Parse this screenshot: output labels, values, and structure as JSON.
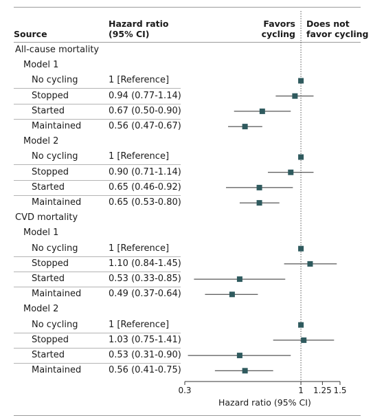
{
  "headers": {
    "source": "Source",
    "hr_line1": "Hazard ratio",
    "hr_line2": "(95% CI)",
    "left_line1": "Favors",
    "left_line2": "cycling",
    "right_line1": "Does not",
    "right_line2": "favor cycling"
  },
  "rows": [
    {
      "label": "All-cause mortality",
      "level": 0
    },
    {
      "label": "Model 1",
      "level": 1
    },
    {
      "label": "No cycling",
      "level": 2,
      "hr_text": "1 [Reference]"
    },
    {
      "label": "Stopped",
      "level": 2,
      "hr_text": "0.94 (0.77-1.14)"
    },
    {
      "label": "Started",
      "level": 2,
      "hr_text": "0.67 (0.50-0.90)"
    },
    {
      "label": "Maintained",
      "level": 2,
      "hr_text": "0.56 (0.47-0.67)"
    },
    {
      "label": "Model 2",
      "level": 1
    },
    {
      "label": "No cycling",
      "level": 2,
      "hr_text": "1 [Reference]"
    },
    {
      "label": "Stopped",
      "level": 2,
      "hr_text": "0.90 (0.71-1.14)"
    },
    {
      "label": "Started",
      "level": 2,
      "hr_text": "0.65 (0.46-0.92)"
    },
    {
      "label": "Maintained",
      "level": 2,
      "hr_text": "0.65 (0.53-0.80)"
    },
    {
      "label": "CVD mortality",
      "level": 0
    },
    {
      "label": "Model 1",
      "level": 1
    },
    {
      "label": "No cycling",
      "level": 2,
      "hr_text": "1 [Reference]"
    },
    {
      "label": "Stopped",
      "level": 2,
      "hr_text": "1.10 (0.84-1.45)"
    },
    {
      "label": "Started",
      "level": 2,
      "hr_text": "0.53 (0.33-0.85)"
    },
    {
      "label": "Maintained",
      "level": 2,
      "hr_text": "0.49 (0.37-0.64)"
    },
    {
      "label": "Model 2",
      "level": 1
    },
    {
      "label": "No cycling",
      "level": 2,
      "hr_text": "1 [Reference]"
    },
    {
      "label": "Stopped",
      "level": 2,
      "hr_text": "1.03 (0.75-1.41)"
    },
    {
      "label": "Started",
      "level": 2,
      "hr_text": "0.53 (0.31-0.90)"
    },
    {
      "label": "Maintained",
      "level": 2,
      "hr_text": "0.56 (0.41-0.75)"
    }
  ],
  "chart_data": {
    "type": "scatter",
    "xlabel": "Hazard ratio (95% CI)",
    "xscale": "log",
    "xlim": [
      0.3,
      1.5
    ],
    "xticks": [
      0.3,
      1,
      1.25,
      1.5
    ],
    "xtick_labels": [
      "0.3",
      "1",
      "1.25",
      "1.5"
    ],
    "reference_line": 1,
    "marker_color": "#2f5a5e",
    "points": [
      {
        "row": 2,
        "hr": 1,
        "ci": null
      },
      {
        "row": 3,
        "hr": 0.94,
        "ci": [
          0.77,
          1.14
        ]
      },
      {
        "row": 4,
        "hr": 0.67,
        "ci": [
          0.5,
          0.9
        ]
      },
      {
        "row": 5,
        "hr": 0.56,
        "ci": [
          0.47,
          0.67
        ]
      },
      {
        "row": 7,
        "hr": 1,
        "ci": null
      },
      {
        "row": 8,
        "hr": 0.9,
        "ci": [
          0.71,
          1.14
        ]
      },
      {
        "row": 9,
        "hr": 0.65,
        "ci": [
          0.46,
          0.92
        ]
      },
      {
        "row": 10,
        "hr": 0.65,
        "ci": [
          0.53,
          0.8
        ]
      },
      {
        "row": 13,
        "hr": 1,
        "ci": null
      },
      {
        "row": 14,
        "hr": 1.1,
        "ci": [
          0.84,
          1.45
        ]
      },
      {
        "row": 15,
        "hr": 0.53,
        "ci": [
          0.33,
          0.85
        ]
      },
      {
        "row": 16,
        "hr": 0.49,
        "ci": [
          0.37,
          0.64
        ]
      },
      {
        "row": 18,
        "hr": 1,
        "ci": null
      },
      {
        "row": 19,
        "hr": 1.03,
        "ci": [
          0.75,
          1.41
        ]
      },
      {
        "row": 20,
        "hr": 0.53,
        "ci": [
          0.31,
          0.9
        ]
      },
      {
        "row": 21,
        "hr": 0.56,
        "ci": [
          0.41,
          0.75
        ]
      }
    ]
  }
}
